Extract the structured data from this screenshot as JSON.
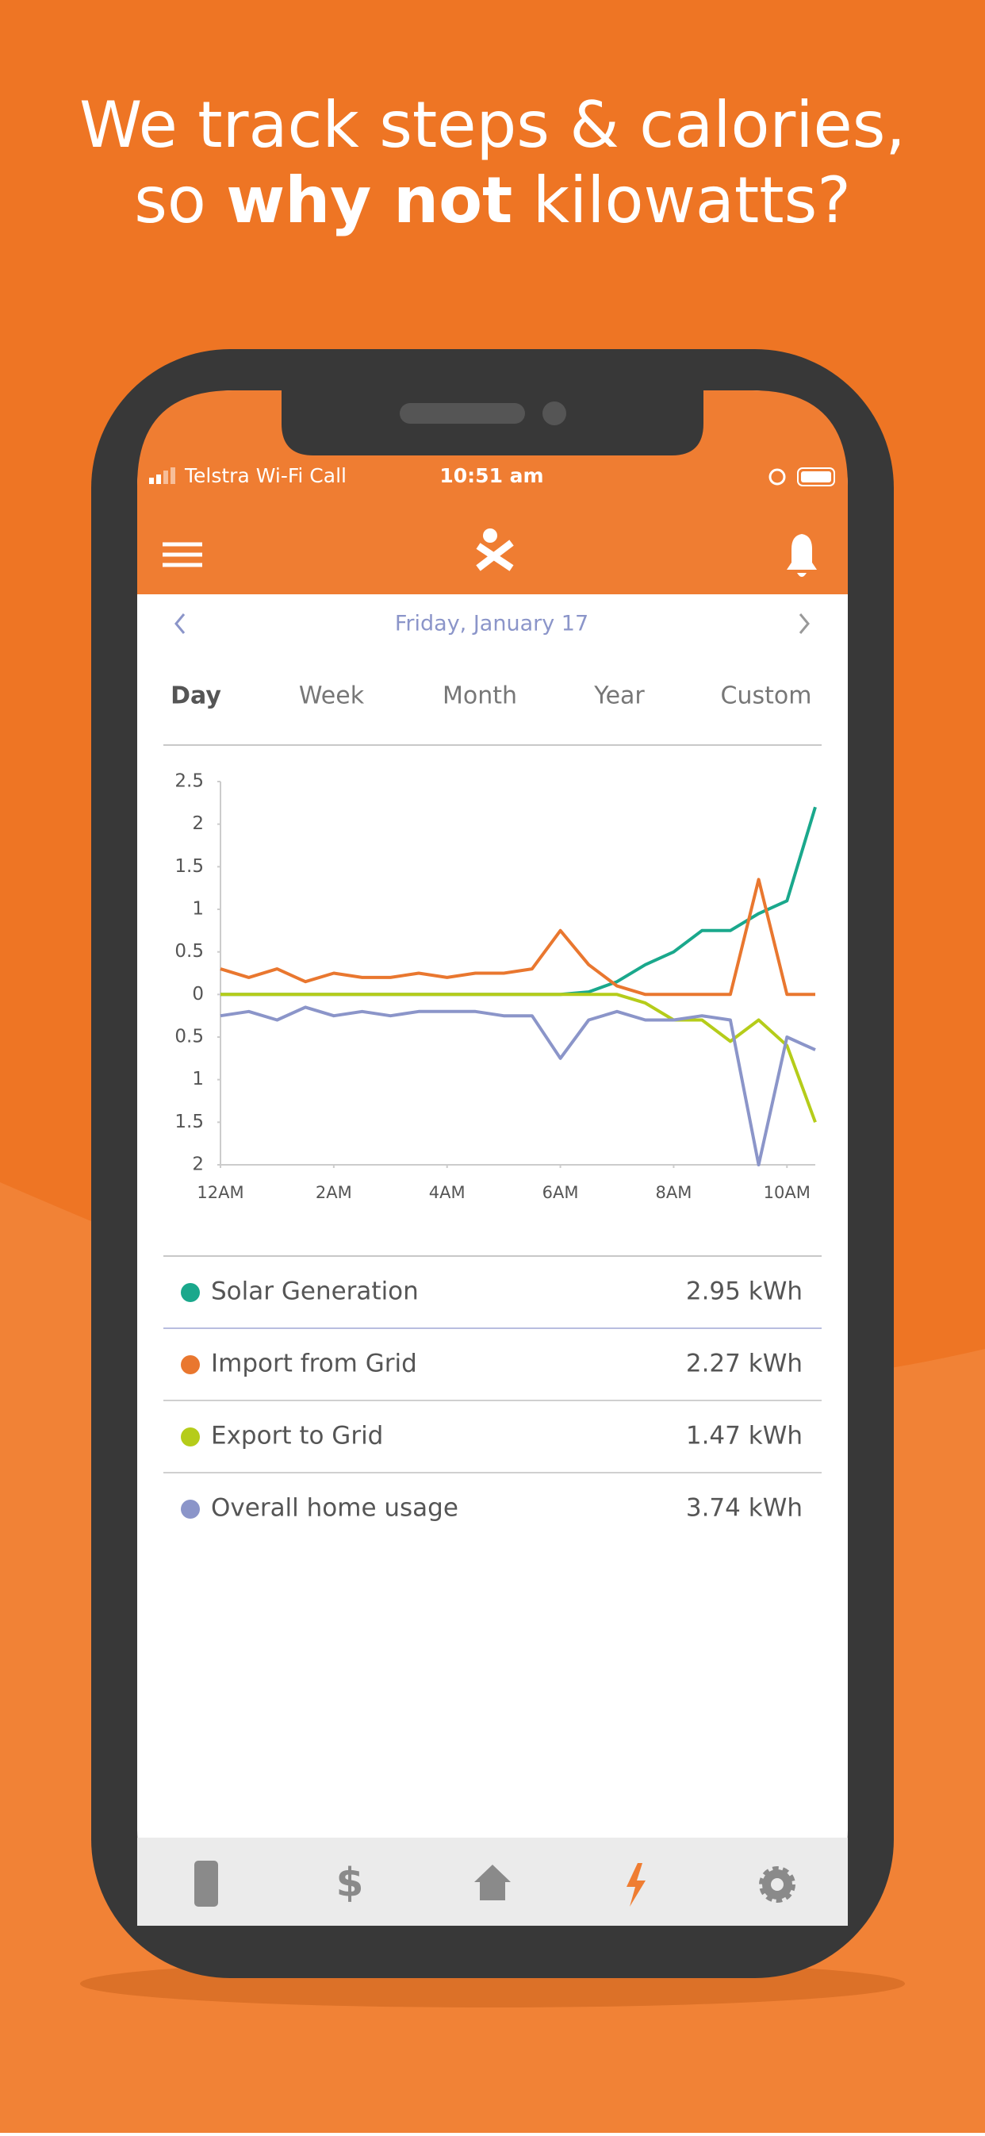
{
  "headline": {
    "line1": "We track steps & calories,",
    "line2": [
      "so ",
      "why not",
      " kilowatts?"
    ]
  },
  "status_bar": {
    "carrier": "Telstra Wi-Fi Call",
    "time": "10:51 am"
  },
  "date": "Friday, January 17",
  "tabs": [
    "Day",
    "Week",
    "Month",
    "Year",
    "Custom"
  ],
  "chart_data": {
    "type": "line",
    "x": [
      0,
      0.5,
      1,
      1.5,
      2,
      2.5,
      3,
      3.5,
      4,
      4.5,
      5,
      5.5,
      6,
      6.5,
      7,
      7.5,
      8,
      8.5,
      9,
      9.5,
      10,
      10.5
    ],
    "xlim": [
      0,
      10.5
    ],
    "xticks": [
      {
        "value": 0,
        "label": "12AM"
      },
      {
        "value": 2,
        "label": "2AM"
      },
      {
        "value": 4,
        "label": "4AM"
      },
      {
        "value": 6,
        "label": "6AM"
      },
      {
        "value": 8,
        "label": "8AM"
      },
      {
        "value": 10,
        "label": "10AM"
      }
    ],
    "ylim": [
      -2,
      2.5
    ],
    "yticks": [
      2.5,
      2,
      1.5,
      1,
      0.5,
      0,
      {
        "value": -0.5,
        "label": "0.5"
      },
      {
        "value": -1,
        "label": "1"
      },
      {
        "value": -1.5,
        "label": "1.5"
      },
      {
        "value": -2,
        "label": "2"
      }
    ],
    "series": [
      {
        "name": "Solar Generation",
        "color": "#1aa88c",
        "values": [
          0,
          0,
          0,
          0,
          0,
          0,
          0,
          0,
          0,
          0,
          0,
          0,
          0,
          0.03,
          0.15,
          0.35,
          0.5,
          0.75,
          0.75,
          0.95,
          1.1,
          2.2
        ]
      },
      {
        "name": "Import from Grid",
        "color": "#e9772f",
        "values": [
          0.3,
          0.2,
          0.3,
          0.15,
          0.25,
          0.2,
          0.2,
          0.25,
          0.2,
          0.25,
          0.25,
          0.3,
          0.75,
          0.35,
          0.1,
          0,
          0,
          0,
          0,
          1.35,
          0,
          0
        ]
      },
      {
        "name": "Export to Grid",
        "color": "#b5cc1a",
        "values": [
          0,
          0,
          0,
          0,
          0,
          0,
          0,
          0,
          0,
          0,
          0,
          0,
          0,
          0,
          0,
          -0.1,
          -0.3,
          -0.3,
          -0.55,
          -0.3,
          -0.6,
          -1.5
        ]
      },
      {
        "name": "Overall home usage",
        "color": "#8b95c9",
        "values": [
          -0.25,
          -0.2,
          -0.3,
          -0.15,
          -0.25,
          -0.2,
          -0.25,
          -0.2,
          -0.2,
          -0.2,
          -0.25,
          -0.25,
          -0.75,
          -0.3,
          -0.2,
          -0.3,
          -0.3,
          -0.25,
          -0.3,
          -2,
          -0.5,
          -0.65
        ]
      }
    ],
    "totals": [
      "2.95 kWh",
      "2.27 kWh",
      "1.47 kWh",
      "3.74 kWh"
    ]
  }
}
